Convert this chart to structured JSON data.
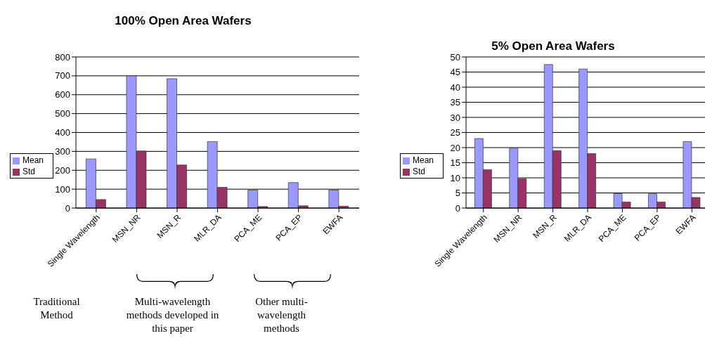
{
  "chart_data": [
    {
      "type": "bar",
      "title": "100% Open Area Wafers",
      "categories": [
        "Single Wavelength",
        "MSN_NR",
        "MSN_R",
        "MLR_DA",
        "PCA_ME",
        "PCA_EP",
        "EWFA"
      ],
      "series": [
        {
          "name": "Mean",
          "color": "#9999ff",
          "values": [
            260,
            700,
            685,
            352,
            95,
            135,
            95
          ]
        },
        {
          "name": "Std",
          "color": "#993366",
          "values": [
            45,
            302,
            228,
            110,
            8,
            12,
            10
          ]
        }
      ],
      "ylim": [
        0,
        800
      ],
      "yticks": [
        0,
        100,
        200,
        300,
        400,
        500,
        600,
        700,
        800
      ],
      "grid": "y",
      "legend": "left",
      "annotations": [
        "Traditional Method",
        "Multi-wavelength methods developed in this paper",
        "Other multi-wavelength methods"
      ]
    },
    {
      "type": "bar",
      "title": "5% Open Area Wafers",
      "categories": [
        "Single Wavelength",
        "MSN_NR",
        "MSN_R",
        "MLR_DA",
        "PCA_ME",
        "PCA_EP",
        "EWFA"
      ],
      "series": [
        {
          "name": "Mean",
          "color": "#9999ff",
          "values": [
            23,
            19.8,
            47.5,
            46,
            4.8,
            4.7,
            22
          ]
        },
        {
          "name": "Std",
          "color": "#993366",
          "values": [
            12.7,
            9.7,
            19,
            18,
            2,
            2,
            3.5
          ]
        }
      ],
      "ylim": [
        0,
        50
      ],
      "yticks": [
        0,
        5,
        10,
        15,
        20,
        25,
        30,
        35,
        40,
        45,
        50
      ],
      "grid": "y",
      "legend": "left"
    }
  ]
}
